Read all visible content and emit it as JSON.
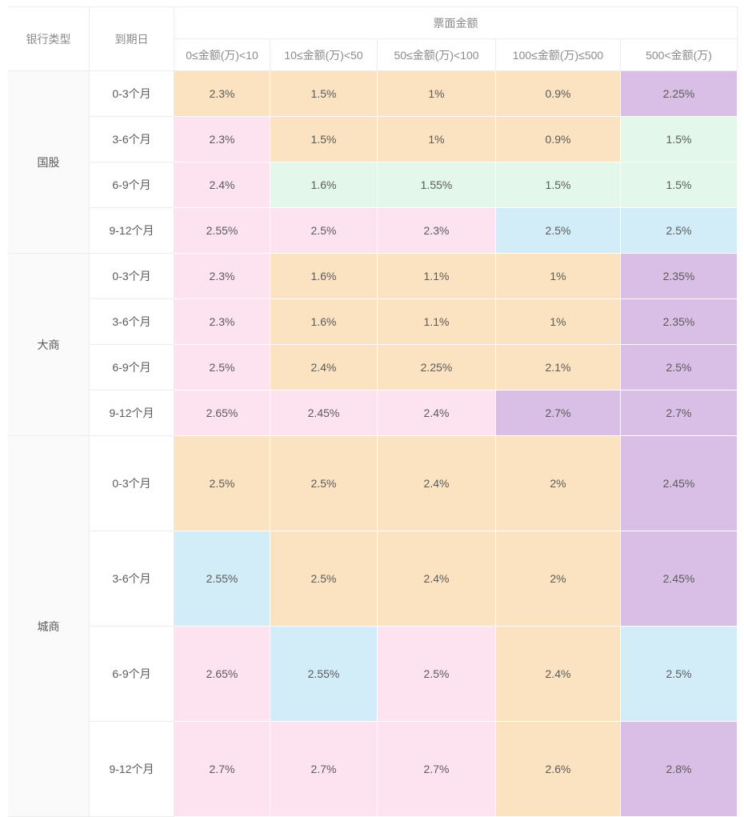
{
  "headers": {
    "bank_type": "银行类型",
    "maturity": "到期日",
    "face_amount": "票面金额",
    "amount_ranges": [
      "0≤金额(万)<10",
      "10≤金额(万)<50",
      "50≤金额(万)<100",
      "100≤金额(万)≤500",
      "500<金额(万)"
    ]
  },
  "groups": [
    {
      "bank": "国股",
      "rows": [
        {
          "term": "0-3个月",
          "rates": [
            "2.3%",
            "1.5%",
            "1%",
            "0.9%",
            "2.25%"
          ],
          "colors": [
            "orange",
            "orange",
            "orange",
            "orange",
            "purple"
          ]
        },
        {
          "term": "3-6个月",
          "rates": [
            "2.3%",
            "1.5%",
            "1%",
            "0.9%",
            "1.5%"
          ],
          "colors": [
            "pink",
            "orange",
            "orange",
            "orange",
            "green"
          ]
        },
        {
          "term": "6-9个月",
          "rates": [
            "2.4%",
            "1.6%",
            "1.55%",
            "1.5%",
            "1.5%"
          ],
          "colors": [
            "pink",
            "green",
            "green",
            "green",
            "green"
          ]
        },
        {
          "term": "9-12个月",
          "rates": [
            "2.55%",
            "2.5%",
            "2.3%",
            "2.5%",
            "2.5%"
          ],
          "colors": [
            "pink",
            "pink",
            "pink",
            "blue",
            "blue"
          ]
        }
      ]
    },
    {
      "bank": "大商",
      "rows": [
        {
          "term": "0-3个月",
          "rates": [
            "2.3%",
            "1.6%",
            "1.1%",
            "1%",
            "2.35%"
          ],
          "colors": [
            "pink",
            "orange",
            "orange",
            "orange",
            "purple"
          ]
        },
        {
          "term": "3-6个月",
          "rates": [
            "2.3%",
            "1.6%",
            "1.1%",
            "1%",
            "2.35%"
          ],
          "colors": [
            "pink",
            "orange",
            "orange",
            "orange",
            "purple"
          ]
        },
        {
          "term": "6-9个月",
          "rates": [
            "2.5%",
            "2.4%",
            "2.25%",
            "2.1%",
            "2.5%"
          ],
          "colors": [
            "pink",
            "orange",
            "orange",
            "orange",
            "purple"
          ]
        },
        {
          "term": "9-12个月",
          "rates": [
            "2.65%",
            "2.45%",
            "2.4%",
            "2.7%",
            "2.7%"
          ],
          "colors": [
            "pink",
            "pink",
            "pink",
            "purple",
            "purple"
          ]
        }
      ]
    },
    {
      "bank": "城商",
      "rows": [
        {
          "term": "0-3个月",
          "rates": [
            "2.5%",
            "2.5%",
            "2.4%",
            "2%",
            "2.45%"
          ],
          "colors": [
            "orange",
            "orange",
            "orange",
            "orange",
            "purple"
          ]
        },
        {
          "term": "3-6个月",
          "rates": [
            "2.55%",
            "2.5%",
            "2.4%",
            "2%",
            "2.45%"
          ],
          "colors": [
            "blue",
            "orange",
            "orange",
            "orange",
            "purple"
          ]
        },
        {
          "term": "6-9个月",
          "rates": [
            "2.65%",
            "2.55%",
            "2.5%",
            "2.4%",
            "2.5%"
          ],
          "colors": [
            "pink",
            "blue",
            "pink",
            "orange",
            "blue"
          ]
        },
        {
          "term": "9-12个月",
          "rates": [
            "2.7%",
            "2.7%",
            "2.7%",
            "2.6%",
            "2.8%"
          ],
          "colors": [
            "pink",
            "pink",
            "pink",
            "orange",
            "purple"
          ]
        }
      ]
    }
  ],
  "palette": {
    "orange": "#fbe2c0",
    "purple": "#d9bfe5",
    "pink": "#fde2ef",
    "green": "#e3f7ea",
    "blue": "#d3edf8",
    "header_text": "#8a8a8a",
    "cell_text": "#5a5a5a"
  }
}
